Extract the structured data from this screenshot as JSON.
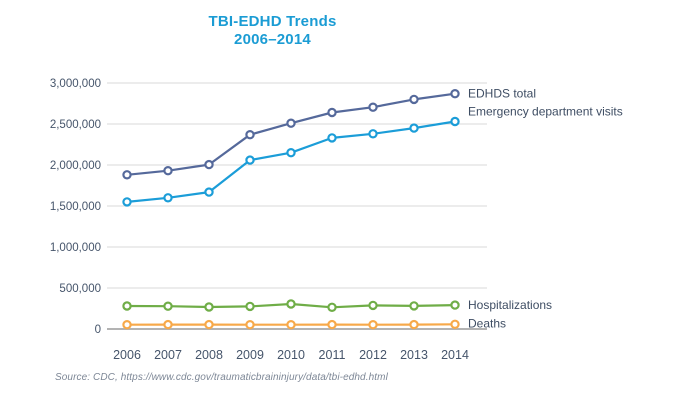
{
  "page": {
    "title_line1": "TBI-EDHD Trends",
    "title_line2": "2006–2014",
    "title_color": "#1b9cd4",
    "source_note": "Source: CDC, https://www.cdc.gov/traumaticbraininjury/data/tbi-edhd.html"
  },
  "chart_data": {
    "type": "line",
    "title": "TBI-EDHD Trends 2006–2014",
    "categories": [
      "2006",
      "2007",
      "2008",
      "2009",
      "2010",
      "2011",
      "2012",
      "2013",
      "2014"
    ],
    "series": [
      {
        "name": "EDHDS total",
        "color": "#55699b",
        "values": [
          1880000,
          1930000,
          2005000,
          2370000,
          2510000,
          2640000,
          2705000,
          2800000,
          2870000
        ],
        "label_dy": 0
      },
      {
        "name": "Emergency department visits",
        "color": "#1b9dd8",
        "values": [
          1550000,
          1600000,
          1670000,
          2060000,
          2150000,
          2330000,
          2380000,
          2450000,
          2530000
        ],
        "label_dy": -10
      },
      {
        "name": "Hospitalizations",
        "color": "#6fad47",
        "values": [
          280000,
          278000,
          268000,
          275000,
          305000,
          265000,
          288000,
          282000,
          292000
        ],
        "label_dy": 0
      },
      {
        "name": "Deaths",
        "color": "#f7a94a",
        "values": [
          53000,
          54000,
          54000,
          53000,
          53000,
          54000,
          53000,
          54000,
          57000
        ],
        "label_dy": -1
      }
    ],
    "ylim": [
      0,
      3000000
    ],
    "ytick_step": 500000,
    "ytick_labels": [
      "0",
      "500,000",
      "1,000,000",
      "1,500,000",
      "2,000,000",
      "2,500,000",
      "3,000,000"
    ],
    "grid": true,
    "legend_position": "right of last data points",
    "colors": {
      "gridline": "#d9d9d9",
      "axis_line": "#b3b3b3",
      "tick_label": "#46556b",
      "legend_label": "#3e4d63",
      "source": "#7d8796",
      "marker_fill": "#ffffff"
    }
  }
}
